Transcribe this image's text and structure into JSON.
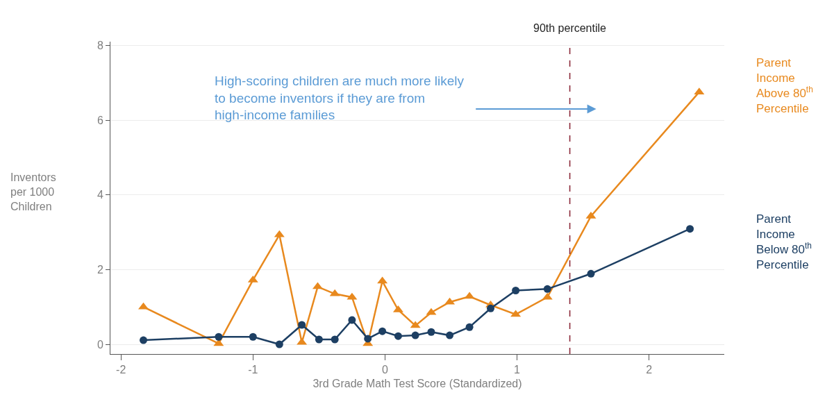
{
  "chart_data": {
    "type": "line",
    "xlabel": "3rd Grade Math Test Score (Standardized)",
    "ylabel": "Inventors per 1000 Children",
    "series": [
      {
        "name": "Parent Income Above 80$^{th}$ Percentile",
        "color": "#e8891e",
        "marker": "triangle",
        "x": [
          -1.83,
          -1.26,
          -1.0,
          -0.8,
          -0.63,
          -0.51,
          -0.38,
          -0.25,
          -0.13,
          -0.02,
          0.1,
          0.23,
          0.35,
          0.49,
          0.64,
          0.8,
          0.99,
          1.23,
          1.56,
          2.38
        ],
        "values": [
          1.0,
          0.02,
          1.72,
          2.93,
          0.05,
          1.54,
          1.35,
          1.26,
          0.02,
          1.69,
          0.92,
          0.5,
          0.85,
          1.13,
          1.28,
          1.05,
          0.8,
          1.26,
          3.43,
          6.75
        ]
      },
      {
        "name": "Parent Income Below 80$^{th}$ Percentile",
        "color": "#1d3f63",
        "marker": "circle",
        "x": [
          -1.83,
          -1.26,
          -1.0,
          -0.8,
          -0.63,
          -0.5,
          -0.38,
          -0.25,
          -0.13,
          -0.02,
          0.1,
          0.23,
          0.35,
          0.49,
          0.64,
          0.8,
          0.99,
          1.23,
          1.56,
          2.31
        ],
        "values": [
          0.11,
          0.2,
          0.2,
          0.0,
          0.52,
          0.13,
          0.13,
          0.65,
          0.15,
          0.35,
          0.22,
          0.24,
          0.33,
          0.24,
          0.46,
          0.96,
          1.44,
          1.48,
          1.89,
          3.09
        ]
      }
    ],
    "xlim": [
      -2.08,
      2.57
    ],
    "xticks": [
      -2,
      -1,
      0,
      1,
      2
    ],
    "ylim": [
      -0.26,
      8.1
    ],
    "yticks": [
      0,
      2,
      4,
      6,
      8
    ],
    "grid": "y",
    "legend": false,
    "line_style": "solid",
    "ref_lines": [
      {
        "axis": "x",
        "value": 1.4,
        "label": "90th percentile",
        "color": "#8b2a3a",
        "line_style": "dashed"
      }
    ],
    "annotations": [
      "High-scoring children are much more likely to become inventors if they are from high-income families"
    ]
  }
}
